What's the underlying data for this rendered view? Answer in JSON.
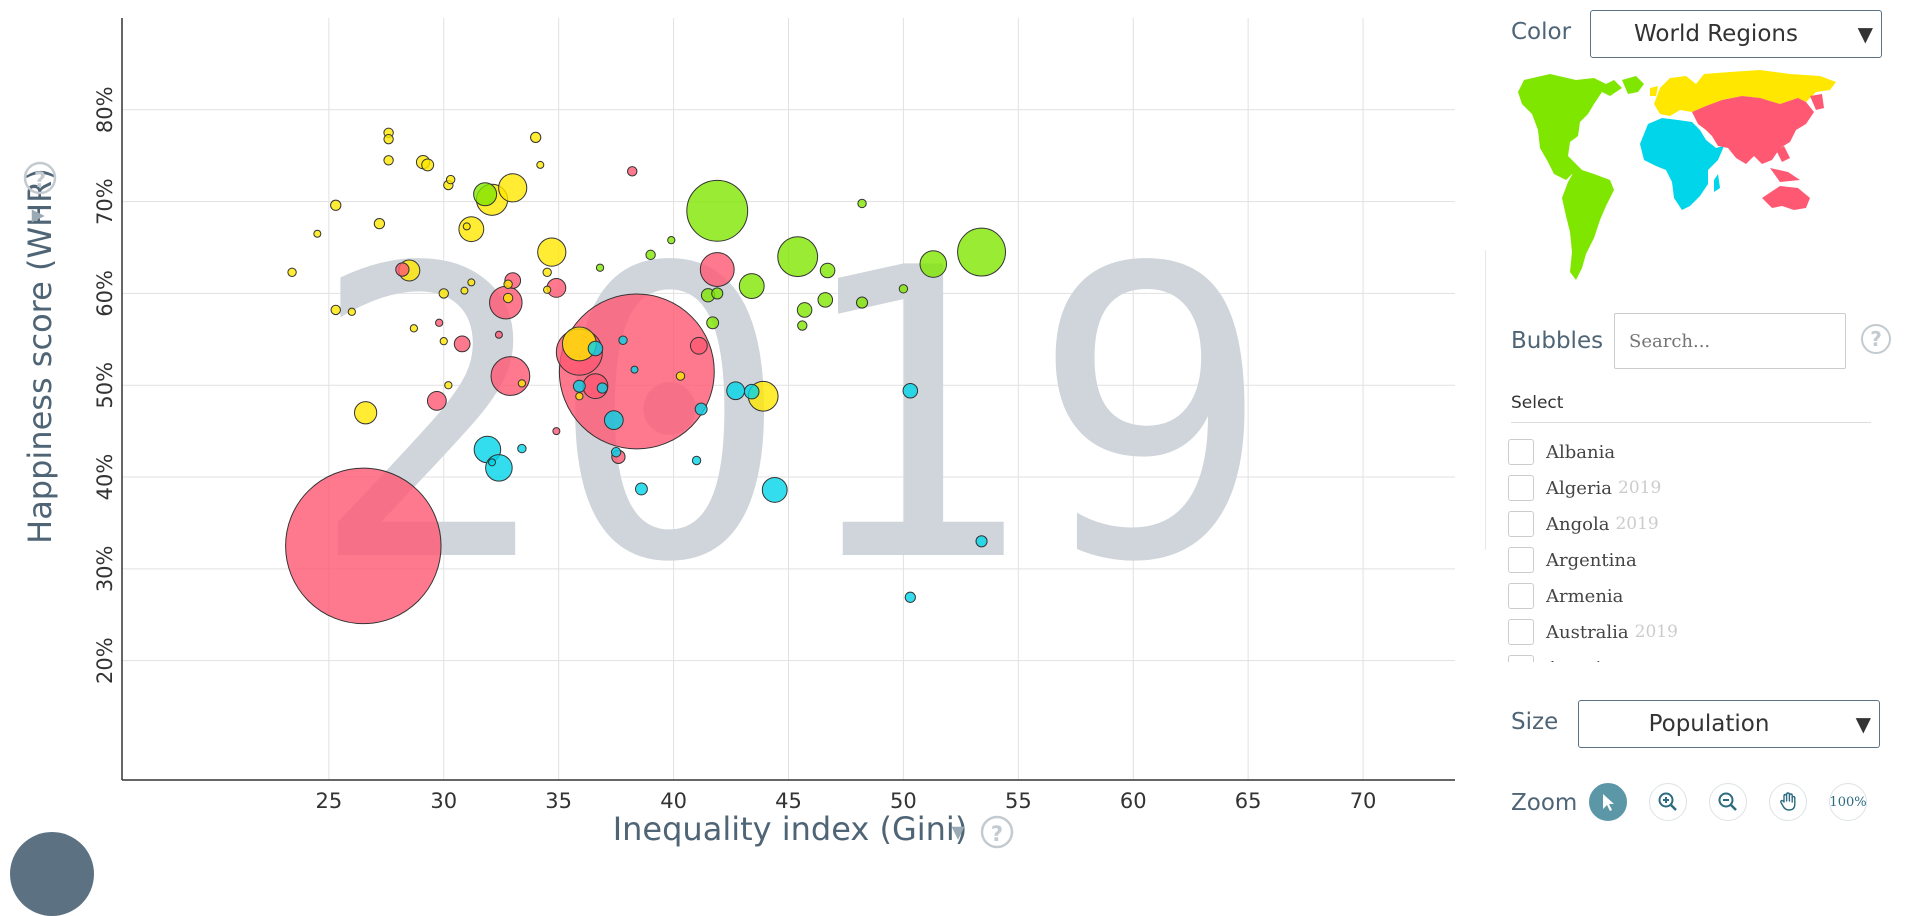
{
  "chart_data": {
    "type": "scatter",
    "year": "2019",
    "xlabel": "Inequality index (Gini)",
    "ylabel": "Happiness score (WHR)",
    "xlim": [
      16,
      74
    ],
    "ylim": [
      7,
      90
    ],
    "x_ticks": [
      25,
      30,
      35,
      40,
      45,
      50,
      55,
      60,
      65,
      70
    ],
    "x_tick_labels": [
      "25",
      "30",
      "35",
      "40",
      "45",
      "50",
      "55",
      "60",
      "65",
      "70"
    ],
    "y_ticks": [
      20,
      30,
      40,
      50,
      60,
      70,
      80
    ],
    "y_tick_labels": [
      "20%",
      "30%",
      "40%",
      "50%",
      "60%",
      "70%",
      "80%"
    ],
    "grid": true,
    "size_encoding": "Population",
    "color_encoding": "World Regions",
    "region_colors": {
      "americas": "#7fe600",
      "europe": "#ffe700",
      "africa": "#00d5e9",
      "asia": "#ff5872"
    },
    "points": [
      {
        "x": 26.5,
        "y": 32.5,
        "size": 1370,
        "region": "asia"
      },
      {
        "x": 38.4,
        "y": 51.5,
        "size": 1360,
        "region": "asia"
      },
      {
        "x": 41.9,
        "y": 69.0,
        "size": 210,
        "region": "americas"
      },
      {
        "x": 53.4,
        "y": 64.5,
        "size": 130,
        "region": "americas"
      },
      {
        "x": 45.4,
        "y": 64.0,
        "size": 90,
        "region": "americas"
      },
      {
        "x": 51.3,
        "y": 63.2,
        "size": 40,
        "region": "americas"
      },
      {
        "x": 43.4,
        "y": 60.8,
        "size": 35,
        "region": "americas"
      },
      {
        "x": 31.8,
        "y": 70.8,
        "size": 30,
        "region": "americas"
      },
      {
        "x": 41.5,
        "y": 59.8,
        "size": 10,
        "region": "americas"
      },
      {
        "x": 46.6,
        "y": 59.3,
        "size": 12,
        "region": "americas"
      },
      {
        "x": 45.7,
        "y": 58.2,
        "size": 12,
        "region": "americas"
      },
      {
        "x": 46.7,
        "y": 62.5,
        "size": 12,
        "region": "americas"
      },
      {
        "x": 48.2,
        "y": 59.0,
        "size": 7,
        "region": "americas"
      },
      {
        "x": 41.7,
        "y": 56.8,
        "size": 8,
        "region": "americas"
      },
      {
        "x": 45.6,
        "y": 56.5,
        "size": 5,
        "region": "americas"
      },
      {
        "x": 41.9,
        "y": 60.0,
        "size": 7,
        "region": "americas"
      },
      {
        "x": 39.0,
        "y": 64.2,
        "size": 5,
        "region": "americas"
      },
      {
        "x": 48.2,
        "y": 69.8,
        "size": 4,
        "region": "americas"
      },
      {
        "x": 50.0,
        "y": 60.5,
        "size": 4,
        "region": "americas"
      },
      {
        "x": 39.9,
        "y": 65.8,
        "size": 3,
        "region": "americas"
      },
      {
        "x": 36.8,
        "y": 62.8,
        "size": 3,
        "region": "americas"
      },
      {
        "x": 33.0,
        "y": 71.5,
        "size": 45,
        "region": "europe"
      },
      {
        "x": 32.1,
        "y": 70.2,
        "size": 55,
        "region": "europe"
      },
      {
        "x": 31.2,
        "y": 67.0,
        "size": 35,
        "region": "europe"
      },
      {
        "x": 34.7,
        "y": 64.5,
        "size": 45,
        "region": "europe"
      },
      {
        "x": 28.5,
        "y": 62.5,
        "size": 25,
        "region": "europe"
      },
      {
        "x": 35.9,
        "y": 54.5,
        "size": 65,
        "region": "europe"
      },
      {
        "x": 43.9,
        "y": 48.8,
        "size": 50,
        "region": "europe"
      },
      {
        "x": 26.6,
        "y": 47.0,
        "size": 28,
        "region": "europe"
      },
      {
        "x": 29.1,
        "y": 74.3,
        "size": 10,
        "region": "europe"
      },
      {
        "x": 29.3,
        "y": 74.0,
        "size": 8,
        "region": "europe"
      },
      {
        "x": 27.6,
        "y": 77.5,
        "size": 5,
        "region": "europe"
      },
      {
        "x": 27.6,
        "y": 76.8,
        "size": 5,
        "region": "europe"
      },
      {
        "x": 27.6,
        "y": 74.5,
        "size": 5,
        "region": "europe"
      },
      {
        "x": 34.0,
        "y": 77.0,
        "size": 6,
        "region": "europe"
      },
      {
        "x": 34.2,
        "y": 74.0,
        "size": 2,
        "region": "europe"
      },
      {
        "x": 30.3,
        "y": 72.4,
        "size": 4,
        "region": "europe"
      },
      {
        "x": 30.2,
        "y": 71.8,
        "size": 5,
        "region": "europe"
      },
      {
        "x": 27.2,
        "y": 67.6,
        "size": 6,
        "region": "europe"
      },
      {
        "x": 25.3,
        "y": 69.6,
        "size": 6,
        "region": "europe"
      },
      {
        "x": 24.5,
        "y": 66.5,
        "size": 2,
        "region": "europe"
      },
      {
        "x": 23.4,
        "y": 62.3,
        "size": 4,
        "region": "europe"
      },
      {
        "x": 25.3,
        "y": 58.2,
        "size": 5,
        "region": "europe"
      },
      {
        "x": 26.0,
        "y": 58.0,
        "size": 3,
        "region": "europe"
      },
      {
        "x": 30.0,
        "y": 60.0,
        "size": 5,
        "region": "europe"
      },
      {
        "x": 30.9,
        "y": 60.3,
        "size": 2,
        "region": "europe"
      },
      {
        "x": 31.2,
        "y": 61.2,
        "size": 2,
        "region": "europe"
      },
      {
        "x": 31.0,
        "y": 67.3,
        "size": 2,
        "region": "europe"
      },
      {
        "x": 28.7,
        "y": 56.2,
        "size": 3,
        "region": "europe"
      },
      {
        "x": 30.0,
        "y": 54.8,
        "size": 3,
        "region": "europe"
      },
      {
        "x": 30.2,
        "y": 50.0,
        "size": 3,
        "region": "europe"
      },
      {
        "x": 33.4,
        "y": 50.2,
        "size": 3,
        "region": "europe"
      },
      {
        "x": 32.8,
        "y": 59.5,
        "size": 5,
        "region": "europe"
      },
      {
        "x": 32.8,
        "y": 61.0,
        "size": 4,
        "region": "europe"
      },
      {
        "x": 34.5,
        "y": 62.3,
        "size": 4,
        "region": "europe"
      },
      {
        "x": 34.5,
        "y": 60.4,
        "size": 3,
        "region": "europe"
      },
      {
        "x": 35.9,
        "y": 48.8,
        "size": 3,
        "region": "europe"
      },
      {
        "x": 40.3,
        "y": 51.0,
        "size": 4,
        "region": "europe"
      },
      {
        "x": 41.9,
        "y": 62.6,
        "size": 65,
        "region": "asia"
      },
      {
        "x": 32.9,
        "y": 51.0,
        "size": 85,
        "region": "asia"
      },
      {
        "x": 32.7,
        "y": 59.0,
        "size": 60,
        "region": "asia"
      },
      {
        "x": 35.9,
        "y": 53.6,
        "size": 120,
        "region": "asia"
      },
      {
        "x": 36.6,
        "y": 49.9,
        "size": 35,
        "region": "asia"
      },
      {
        "x": 29.7,
        "y": 48.3,
        "size": 20,
        "region": "asia"
      },
      {
        "x": 30.8,
        "y": 54.5,
        "size": 14,
        "region": "asia"
      },
      {
        "x": 41.1,
        "y": 54.3,
        "size": 16,
        "region": "asia"
      },
      {
        "x": 34.9,
        "y": 60.6,
        "size": 20,
        "region": "asia"
      },
      {
        "x": 33.0,
        "y": 61.4,
        "size": 14,
        "region": "asia"
      },
      {
        "x": 28.2,
        "y": 62.6,
        "size": 10,
        "region": "asia"
      },
      {
        "x": 37.6,
        "y": 42.2,
        "size": 10,
        "region": "asia"
      },
      {
        "x": 38.2,
        "y": 73.3,
        "size": 5,
        "region": "asia"
      },
      {
        "x": 29.8,
        "y": 56.8,
        "size": 3,
        "region": "asia"
      },
      {
        "x": 32.4,
        "y": 55.5,
        "size": 2,
        "region": "asia"
      },
      {
        "x": 34.9,
        "y": 45.0,
        "size": 2,
        "region": "asia"
      },
      {
        "x": 31.9,
        "y": 43.0,
        "size": 40,
        "region": "africa"
      },
      {
        "x": 32.4,
        "y": 41.0,
        "size": 40,
        "region": "africa"
      },
      {
        "x": 37.4,
        "y": 46.2,
        "size": 20,
        "region": "africa"
      },
      {
        "x": 44.4,
        "y": 38.6,
        "size": 35,
        "region": "africa"
      },
      {
        "x": 42.7,
        "y": 49.4,
        "size": 18,
        "region": "africa"
      },
      {
        "x": 43.4,
        "y": 49.3,
        "size": 12,
        "region": "africa"
      },
      {
        "x": 36.6,
        "y": 54.0,
        "size": 12,
        "region": "africa"
      },
      {
        "x": 35.9,
        "y": 49.9,
        "size": 8,
        "region": "africa"
      },
      {
        "x": 36.9,
        "y": 49.7,
        "size": 6,
        "region": "africa"
      },
      {
        "x": 37.8,
        "y": 54.9,
        "size": 4,
        "region": "africa"
      },
      {
        "x": 41.2,
        "y": 47.4,
        "size": 8,
        "region": "africa"
      },
      {
        "x": 38.6,
        "y": 38.7,
        "size": 8,
        "region": "africa"
      },
      {
        "x": 50.3,
        "y": 49.4,
        "size": 12,
        "region": "africa"
      },
      {
        "x": 50.3,
        "y": 26.9,
        "size": 6,
        "region": "africa"
      },
      {
        "x": 53.4,
        "y": 33.0,
        "size": 7,
        "region": "africa"
      },
      {
        "x": 33.4,
        "y": 43.1,
        "size": 4,
        "region": "africa"
      },
      {
        "x": 37.5,
        "y": 42.7,
        "size": 5,
        "region": "africa"
      },
      {
        "x": 41.0,
        "y": 41.8,
        "size": 4,
        "region": "africa"
      },
      {
        "x": 32.1,
        "y": 41.6,
        "size": 2,
        "region": "africa"
      },
      {
        "x": 38.3,
        "y": 51.7,
        "size": 2,
        "region": "africa"
      }
    ]
  },
  "panel": {
    "color_label": "Color",
    "color_value": "World Regions",
    "bubbles_label": "Bubbles",
    "search_placeholder": "Search...",
    "help_glyph": "?",
    "select_title": "Select",
    "countries": [
      {
        "name": "Albania",
        "year": ""
      },
      {
        "name": "Algeria",
        "year": "2019"
      },
      {
        "name": "Angola",
        "year": "2019"
      },
      {
        "name": "Argentina",
        "year": ""
      },
      {
        "name": "Armenia",
        "year": ""
      },
      {
        "name": "Australia",
        "year": "2019"
      },
      {
        "name": "Austria",
        "year": ""
      }
    ],
    "size_label": "Size",
    "size_value": "Population",
    "zoom_label": "Zoom",
    "zoom_100": "100%",
    "dropdown_arrow": "▼"
  },
  "axis_controls": {
    "x_arrow": "▾",
    "y_arrow": "▾",
    "help_glyph": "?"
  }
}
